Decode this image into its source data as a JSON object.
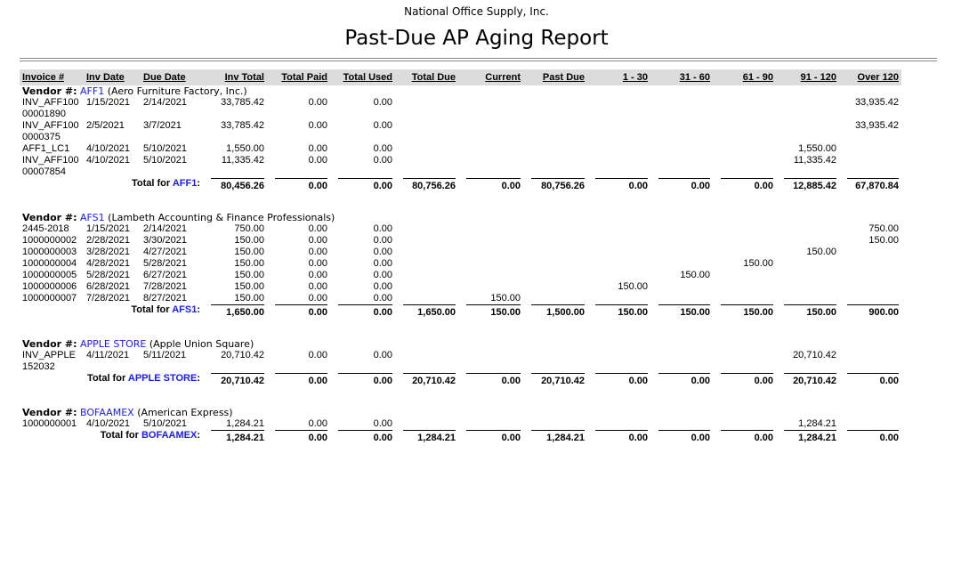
{
  "header": {
    "company": "National Office Supply, Inc.",
    "title": "Past-Due AP Aging Report"
  },
  "columns": [
    "Invoice #",
    "Inv Date",
    "Due Date",
    "Inv Total",
    "Total Paid",
    "Total Used",
    "Total Due",
    "Current",
    "Past Due",
    "1 - 30",
    "31 - 60",
    "61 - 90",
    "91 - 120",
    "Over 120"
  ],
  "vendor_label": "Vendor #:",
  "total_for": "Total for",
  "colon": ":",
  "vendors": [
    {
      "id": "AFF1",
      "name": "(Aero Furniture Factory, Inc.)",
      "rows": [
        [
          "INV_AFF10000001890",
          "1/15/2021",
          "2/14/2021",
          "33,785.42",
          "0.00",
          "0.00",
          null,
          null,
          null,
          null,
          null,
          null,
          null,
          "33,935.42"
        ],
        [
          "INV_AFF1000000375",
          "2/5/2021",
          "3/7/2021",
          "33,785.42",
          "0.00",
          "0.00",
          null,
          null,
          null,
          null,
          null,
          null,
          null,
          "33,935.42"
        ],
        [
          "AFF1_LC1",
          "4/10/2021",
          "5/10/2021",
          "1,550.00",
          "0.00",
          "0.00",
          null,
          null,
          null,
          null,
          null,
          null,
          "1,550.00",
          null
        ],
        [
          "INV_AFF10000007854",
          "4/10/2021",
          "5/10/2021",
          "11,335.42",
          "0.00",
          "0.00",
          null,
          null,
          null,
          null,
          null,
          null,
          "11,335.42",
          null
        ]
      ],
      "totals": [
        "80,456.26",
        "0.00",
        "0.00",
        "80,756.26",
        "0.00",
        "80,756.26",
        "0.00",
        "0.00",
        "0.00",
        "12,885.42",
        "67,870.84"
      ]
    },
    {
      "id": "AFS1",
      "name": "(Lambeth Accounting & Finance Professionals)",
      "rows": [
        [
          "2445-2018",
          "1/15/2021",
          "2/14/2021",
          "750.00",
          "0.00",
          "0.00",
          null,
          null,
          null,
          null,
          null,
          null,
          null,
          "750.00"
        ],
        [
          "1000000002",
          "2/28/2021",
          "3/30/2021",
          "150.00",
          "0.00",
          "0.00",
          null,
          null,
          null,
          null,
          null,
          null,
          null,
          "150.00"
        ],
        [
          "1000000003",
          "3/28/2021",
          "4/27/2021",
          "150.00",
          "0.00",
          "0.00",
          null,
          null,
          null,
          null,
          null,
          null,
          "150.00",
          null
        ],
        [
          "1000000004",
          "4/28/2021",
          "5/28/2021",
          "150.00",
          "0.00",
          "0.00",
          null,
          null,
          null,
          null,
          null,
          "150.00",
          null,
          null
        ],
        [
          "1000000005",
          "5/28/2021",
          "6/27/2021",
          "150.00",
          "0.00",
          "0.00",
          null,
          null,
          null,
          null,
          "150.00",
          null,
          null,
          null
        ],
        [
          "1000000006",
          "6/28/2021",
          "7/28/2021",
          "150.00",
          "0.00",
          "0.00",
          null,
          null,
          null,
          "150.00",
          null,
          null,
          null,
          null
        ],
        [
          "1000000007",
          "7/28/2021",
          "8/27/2021",
          "150.00",
          "0.00",
          "0.00",
          null,
          "150.00",
          null,
          null,
          null,
          null,
          null,
          null
        ]
      ],
      "totals": [
        "1,650.00",
        "0.00",
        "0.00",
        "1,650.00",
        "150.00",
        "1,500.00",
        "150.00",
        "150.00",
        "150.00",
        "150.00",
        "900.00"
      ]
    },
    {
      "id": "APPLE STORE",
      "name": "(Apple Union Square)",
      "rows": [
        [
          "INV_APPLE152032",
          "4/11/2021",
          "5/11/2021",
          "20,710.42",
          "0.00",
          "0.00",
          null,
          null,
          null,
          null,
          null,
          null,
          "20,710.42",
          null
        ]
      ],
      "totals": [
        "20,710.42",
        "0.00",
        "0.00",
        "20,710.42",
        "0.00",
        "20,710.42",
        "0.00",
        "0.00",
        "0.00",
        "20,710.42",
        "0.00"
      ]
    },
    {
      "id": "BOFAAMEX",
      "name": "(American Express)",
      "rows": [
        [
          "1000000001",
          "4/10/2021",
          "5/10/2021",
          "1,284.21",
          "0.00",
          "0.00",
          null,
          null,
          null,
          null,
          null,
          null,
          "1,284.21",
          null
        ]
      ],
      "totals": [
        "1,284.21",
        "0.00",
        "0.00",
        "1,284.21",
        "0.00",
        "1,284.21",
        "0.00",
        "0.00",
        "0.00",
        "1,284.21",
        "0.00"
      ]
    }
  ]
}
